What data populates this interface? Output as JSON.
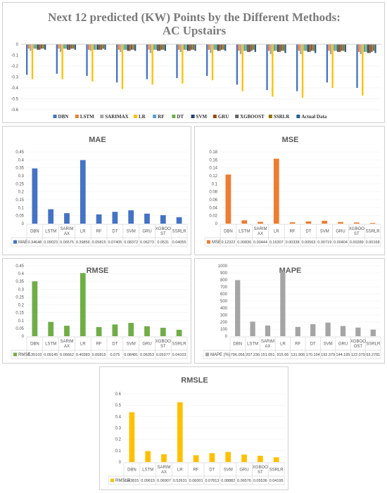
{
  "colors": {
    "DBN": "#4472c4",
    "LSTM": "#ed7d31",
    "SARIMAX": "#a5a5a5",
    "LR": "#ffc000",
    "RF": "#5b9bd5",
    "DT": "#70ad47",
    "SVM": "#264478",
    "GRU": "#9e480e",
    "XGBOOST": "#636363",
    "SSRLR": "#997300",
    "ActualData": "#255e91"
  },
  "chart_data": [
    {
      "type": "bar",
      "title": "Next 12 predicted (KW) Points by the Different Methods:",
      "subtitle": "AC Upstairs",
      "ylim": [
        -0.6,
        0
      ],
      "yticks": [
        "0",
        "-0.1",
        "-0.2",
        "-0.3",
        "-0.4",
        "-0.5",
        "-0.6"
      ],
      "legend_position": "bottom",
      "series": [
        {
          "name": "DBN",
          "values": [
            -0.28,
            -0.27,
            -0.29,
            -0.35,
            -0.32,
            -0.31,
            -0.29,
            -0.37,
            -0.42,
            -0.43,
            -0.35,
            -0.4
          ]
        },
        {
          "name": "LSTM",
          "values": [
            -0.04,
            -0.04,
            -0.05,
            -0.05,
            -0.05,
            -0.05,
            -0.05,
            -0.06,
            -0.06,
            -0.06,
            -0.06,
            -0.07
          ]
        },
        {
          "name": "SARIMAX",
          "values": [
            -0.06,
            -0.07,
            -0.06,
            -0.07,
            -0.08,
            -0.07,
            -0.08,
            -0.09,
            -0.09,
            -0.09,
            -0.09,
            -0.09
          ]
        },
        {
          "name": "LR",
          "values": [
            -0.32,
            -0.32,
            -0.34,
            -0.41,
            -0.37,
            -0.36,
            -0.33,
            -0.43,
            -0.48,
            -0.49,
            -0.4,
            -0.47
          ]
        },
        {
          "name": "RF",
          "values": [
            -0.04,
            -0.04,
            -0.05,
            -0.05,
            -0.05,
            -0.05,
            -0.05,
            -0.06,
            -0.06,
            -0.06,
            -0.06,
            -0.07
          ]
        },
        {
          "name": "DT",
          "values": [
            -0.04,
            -0.04,
            -0.05,
            -0.05,
            -0.05,
            -0.05,
            -0.05,
            -0.06,
            -0.06,
            -0.06,
            -0.06,
            -0.07
          ]
        },
        {
          "name": "SVM",
          "values": [
            -0.05,
            -0.05,
            -0.05,
            -0.06,
            -0.06,
            -0.06,
            -0.06,
            -0.07,
            -0.07,
            -0.07,
            -0.07,
            -0.08
          ]
        },
        {
          "name": "GRU",
          "values": [
            -0.05,
            -0.05,
            -0.05,
            -0.06,
            -0.06,
            -0.06,
            -0.06,
            -0.07,
            -0.07,
            -0.07,
            -0.07,
            -0.08
          ]
        },
        {
          "name": "XGBOOST",
          "values": [
            -0.04,
            -0.04,
            -0.05,
            -0.05,
            -0.05,
            -0.05,
            -0.05,
            -0.06,
            -0.06,
            -0.06,
            -0.06,
            -0.07
          ]
        },
        {
          "name": "SSRLR",
          "values": [
            -0.04,
            -0.04,
            -0.04,
            -0.05,
            -0.05,
            -0.05,
            -0.05,
            -0.05,
            -0.06,
            -0.06,
            -0.06,
            -0.06
          ]
        },
        {
          "name": "Actual Data",
          "values": [
            -0.05,
            -0.05,
            -0.05,
            -0.06,
            -0.06,
            -0.06,
            -0.06,
            -0.07,
            -0.08,
            -0.08,
            -0.07,
            -0.08
          ]
        }
      ]
    },
    {
      "type": "bar",
      "title": "MAE",
      "series_name": "MAE",
      "color": "#4472c4",
      "categories": [
        "DBN",
        "LSTM",
        "SARIMAX",
        "LR",
        "RF",
        "DT",
        "SVM",
        "GRU",
        "XGBOOST",
        "SSRLR"
      ],
      "category_labels": [
        [
          "DBN"
        ],
        [
          "LSTM"
        ],
        [
          "SARIM",
          "AX"
        ],
        [
          "LR"
        ],
        [
          "RF"
        ],
        [
          "DT"
        ],
        [
          "SVM"
        ],
        [
          "GRU"
        ],
        [
          "XGBOO",
          "ST"
        ],
        [
          "SSRLR"
        ]
      ],
      "values": [
        0.34648,
        0.09023,
        0.06575,
        0.39856,
        0.05815,
        0.07405,
        0.08372,
        0.06273,
        0.0531,
        0.04055
      ],
      "value_labels": [
        "0.34648",
        "0.09023",
        "0.06575",
        "0.39856",
        "0.05815",
        "0.07405",
        "0.08372",
        "0.06273",
        "0.0531",
        "0.04055"
      ],
      "ylim": [
        0,
        0.45
      ],
      "yticks": [
        "0",
        "0.05",
        "0.1",
        "0.15",
        "0.2",
        "0.25",
        "0.3",
        "0.35",
        "0.4",
        "0.45"
      ]
    },
    {
      "type": "bar",
      "title": "MSE",
      "series_name": "MSE",
      "color": "#ed7d31",
      "categories": [
        "DBN",
        "LSTM",
        "SARIMAX",
        "LR",
        "RF",
        "DT",
        "SVM",
        "GRU",
        "XGBOOST",
        "SSRLR"
      ],
      "category_labels": [
        [
          "DBN"
        ],
        [
          "LSTM"
        ],
        [
          "SARIM",
          "AX"
        ],
        [
          "LR"
        ],
        [
          "RF"
        ],
        [
          "DT"
        ],
        [
          "SVM"
        ],
        [
          "GRU"
        ],
        [
          "XGBOO",
          "ST"
        ],
        [
          "SSRLR"
        ]
      ],
      "values": [
        0.12322,
        0.00836,
        0.00444,
        0.16307,
        0.00338,
        0.00563,
        0.00719,
        0.00404,
        0.00289,
        0.00168
      ],
      "value_labels": [
        "0.12322",
        "0.00836",
        "0.00444",
        "0.16307",
        "0.00338",
        "0.00563",
        "0.00719",
        "0.00404",
        "0.00289",
        "0.00168"
      ],
      "ylim": [
        0,
        0.18
      ],
      "yticks": [
        "0",
        "0.02",
        "0.04",
        "0.06",
        "0.08",
        "0.1",
        "0.12",
        "0.14",
        "0.16",
        "0.18"
      ]
    },
    {
      "type": "bar",
      "title": "RMSE",
      "series_name": "RMSE",
      "color": "#70ad47",
      "categories": [
        "DBN",
        "LSTM",
        "SARIMAX",
        "LR",
        "RF",
        "DT",
        "SVM",
        "GRU",
        "XGBOOST",
        "SSRLR"
      ],
      "category_labels": [
        [
          "DBN"
        ],
        [
          "LSTM"
        ],
        [
          "SARIM",
          "AX"
        ],
        [
          "LR"
        ],
        [
          "RF"
        ],
        [
          "DT"
        ],
        [
          "SVM"
        ],
        [
          "GRU"
        ],
        [
          "XGBOO",
          "ST"
        ],
        [
          "SSRLR"
        ]
      ],
      "values": [
        0.35103,
        0.09145,
        0.06662,
        0.40383,
        0.05815,
        0.075,
        0.08481,
        0.06353,
        0.05377,
        0.04103
      ],
      "value_labels": [
        "0.35103",
        "0.09145",
        "0.06662",
        "0.40383",
        "0.05815",
        "0.075",
        "0.08481",
        "0.06353",
        "0.05377",
        "0.04103"
      ],
      "ylim": [
        0,
        0.45
      ],
      "yticks": [
        "0",
        "0.05",
        "0.1",
        "0.15",
        "0.2",
        "0.25",
        "0.3",
        "0.35",
        "0.4",
        "0.45"
      ]
    },
    {
      "type": "bar",
      "title": "MAPE",
      "series_name": "MAPE (%)",
      "color": "#a5a5a5",
      "categories": [
        "DBN",
        "LSTM",
        "SARIMAX",
        "LR",
        "RF",
        "DT",
        "SVM",
        "GRU",
        "XGBOOST",
        "SSRLR"
      ],
      "category_labels": [
        [
          "DBN"
        ],
        [
          "LSTM"
        ],
        [
          "SARIM",
          "AX"
        ],
        [
          "LR"
        ],
        [
          "RF"
        ],
        [
          "DT"
        ],
        [
          "SVM"
        ],
        [
          "GRU"
        ],
        [
          "XGBOO",
          "OST"
        ],
        [
          "SSRLR"
        ]
      ],
      "values": [
        796.056,
        207.236,
        151.051,
        915.66,
        131.906,
        170.194,
        192.379,
        144.195,
        122.079,
        93.2781
      ],
      "value_labels": [
        "796.056",
        "207.236",
        "151.051",
        "915.66",
        "131.906",
        "170.194",
        "192.379",
        "144.195",
        "122.079",
        "93.2781"
      ],
      "ylim": [
        0,
        1000
      ],
      "yticks": [
        "0",
        "100",
        "200",
        "300",
        "400",
        "500",
        "600",
        "700",
        "800",
        "900",
        "1000"
      ]
    },
    {
      "type": "bar",
      "title": "RMSLE",
      "series_name": "RMSLE",
      "color": "#ffc000",
      "categories": [
        "DBN",
        "LSTM",
        "SARIMAX",
        "LR",
        "RF",
        "DT",
        "SVM",
        "GRU",
        "XGBOOST",
        "SSRLR"
      ],
      "category_labels": [
        [
          "DBN"
        ],
        [
          "LSTM"
        ],
        [
          "SARIM",
          "AX"
        ],
        [
          "LR"
        ],
        [
          "RF"
        ],
        [
          "DT"
        ],
        [
          "SVM"
        ],
        [
          "GRU"
        ],
        [
          "XGBOO",
          "ST"
        ],
        [
          "SSRLR"
        ]
      ],
      "values": [
        0.43815,
        0.09615,
        0.06907,
        0.52631,
        0.06001,
        0.07813,
        0.08882,
        0.06576,
        0.05536,
        0.04195
      ],
      "value_labels": [
        "0.43815",
        "0.09615",
        "0.06907",
        "0.52631",
        "0.06001",
        "0.07813",
        "0.08882",
        "0.06576",
        "0.05536",
        "0.04195"
      ],
      "ylim": [
        0,
        0.6
      ],
      "yticks": [
        "0",
        "0.1",
        "0.2",
        "0.3",
        "0.4",
        "0.5",
        "0.6"
      ]
    }
  ]
}
